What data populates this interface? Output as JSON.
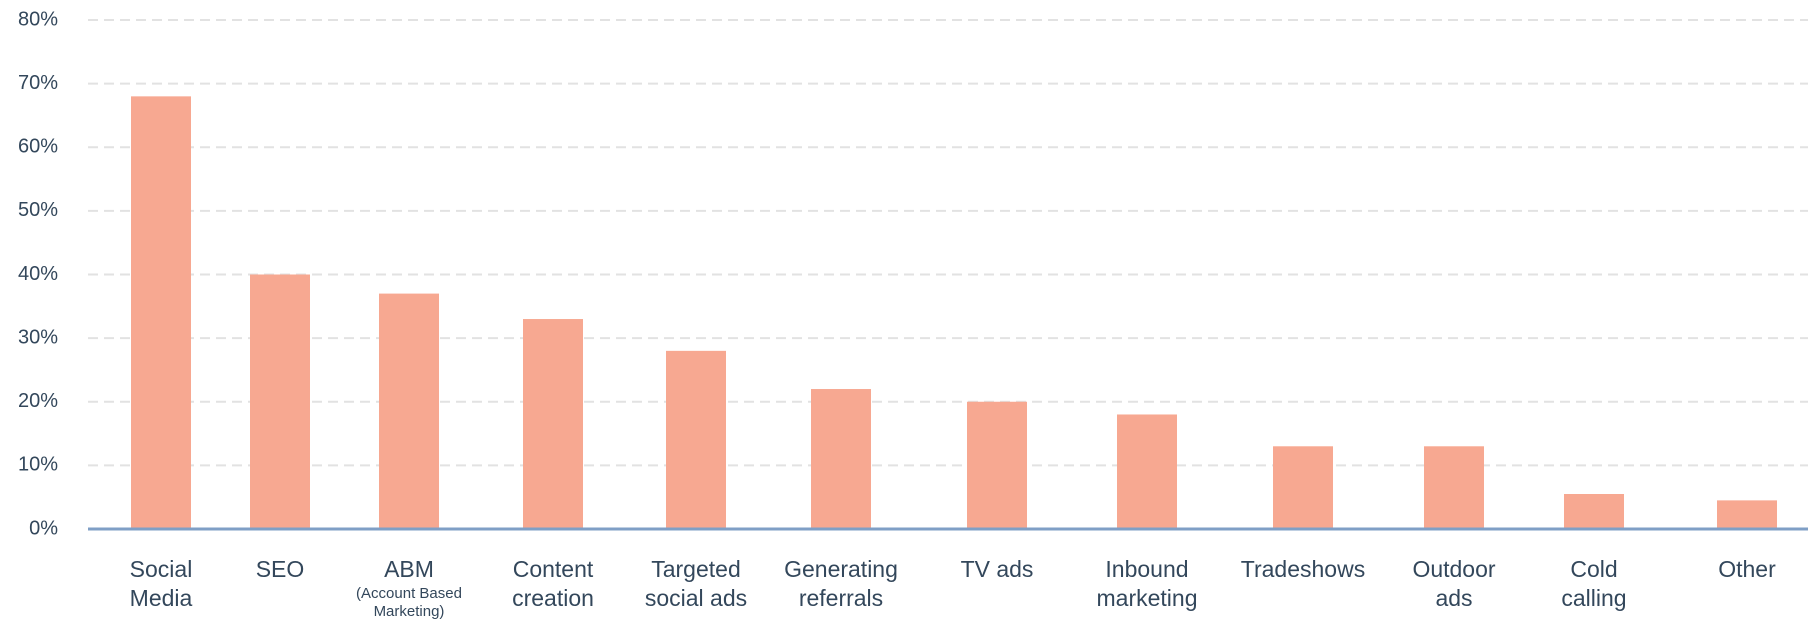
{
  "chart_data": {
    "type": "bar",
    "categories": [
      "Social\nMedia",
      "SEO",
      "ABM",
      "Content\ncreation",
      "Targeted\nsocial ads",
      "Generating\nreferrals",
      "TV ads",
      "Inbound\nmarketing",
      "Tradeshows",
      "Outdoor\nads",
      "Cold\ncalling",
      "Other"
    ],
    "annotations": [
      {
        "category": "ABM",
        "text": "(Account Based Marketing)"
      }
    ],
    "values": [
      68,
      40,
      37,
      33,
      28,
      22,
      20,
      18,
      13,
      13,
      5.5,
      4.5
    ],
    "color": "#f7a891",
    "ylim": [
      0,
      80
    ],
    "yticks": [
      {
        "value": 0,
        "label": "0%"
      },
      {
        "value": 10,
        "label": "10%"
      },
      {
        "value": 20,
        "label": "20%"
      },
      {
        "value": 30,
        "label": "30%"
      },
      {
        "value": 40,
        "label": "40%"
      },
      {
        "value": 50,
        "label": "50%"
      },
      {
        "value": 60,
        "label": "60%"
      },
      {
        "value": 70,
        "label": "70%"
      },
      {
        "value": 80,
        "label": "80%"
      }
    ],
    "grid": true
  }
}
